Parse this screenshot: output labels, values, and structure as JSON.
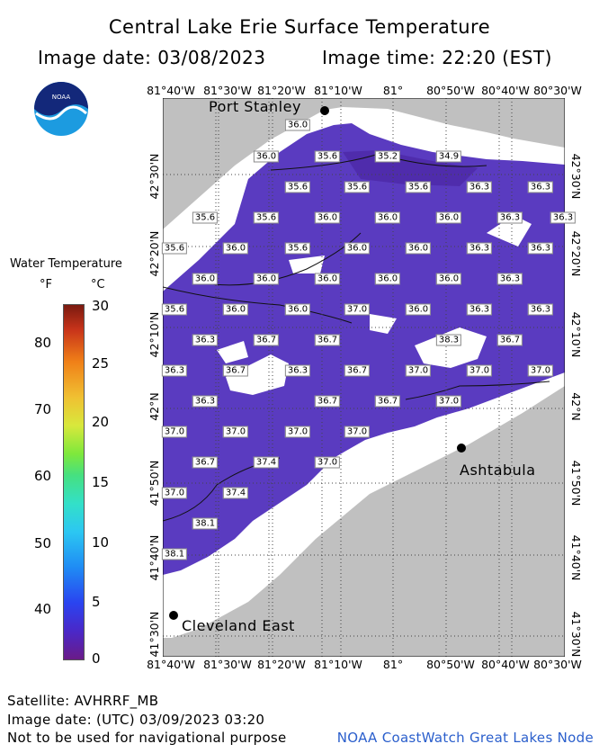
{
  "title": "Central Lake Erie Surface Temperature",
  "image_date": "Image date: 03/08/2023",
  "image_time": "Image time: 22:20 (EST)",
  "logo_text": "NOAA",
  "map": {
    "lon_labels": [
      "81°40'W",
      "81°30'W",
      "81°20'W",
      "81°10'W",
      "81°",
      "80°50'W",
      "80°40'W",
      "80°30'W"
    ],
    "lat_labels": [
      "42°30'N",
      "42°20'N",
      "42°10'N",
      "42°N",
      "41°50'N",
      "41°40'N",
      "41°30'N"
    ],
    "cities": [
      {
        "name": "Port Stanley"
      },
      {
        "name": "Ashtabula"
      },
      {
        "name": "Cleveland East"
      }
    ],
    "temperatures_F": [
      "36.0",
      "36.0",
      "35.6",
      "35.2",
      "34.9",
      "35.6",
      "35.6",
      "35.6",
      "36.3",
      "36.3",
      "35.6",
      "35.6",
      "36.0",
      "36.0",
      "36.0",
      "36.3",
      "36.3",
      "35.6",
      "36.0",
      "35.6",
      "36.0",
      "36.0",
      "36.3",
      "36.3",
      "36.0",
      "36.0",
      "36.0",
      "36.0",
      "36.0",
      "36.3",
      "35.6",
      "36.0",
      "36.0",
      "37.0",
      "36.0",
      "36.3",
      "36.3",
      "36.3",
      "36.7",
      "36.7",
      "38.3",
      "36.7",
      "36.3",
      "36.7",
      "36.3",
      "36.7",
      "37.0",
      "37.0",
      "37.0",
      "36.3",
      "36.7",
      "36.7",
      "37.0",
      "37.0",
      "37.0",
      "37.0",
      "37.0",
      "36.7",
      "37.4",
      "37.0",
      "37.0",
      "37.4",
      "38.1",
      "38.1"
    ]
  },
  "legend": {
    "title": "Water Temperature",
    "unit_f": "°F",
    "unit_c": "°C",
    "f_ticks": [
      "80",
      "70",
      "60",
      "50",
      "40"
    ],
    "c_ticks": [
      "30",
      "25",
      "20",
      "15",
      "10",
      "5",
      "0"
    ]
  },
  "footer": {
    "satellite": "Satellite: AVHRRF_MB",
    "utc_date": "Image date: (UTC) 03/09/2023  03:20",
    "disclaimer": "Not to be used for navigational purpose",
    "credit": "NOAA CoastWatch Great Lakes Node"
  },
  "colors": {
    "water": "#5a3bc0",
    "land": "#c0c0c0",
    "ice": "#ffffff",
    "credit": "#2b5fcc"
  }
}
